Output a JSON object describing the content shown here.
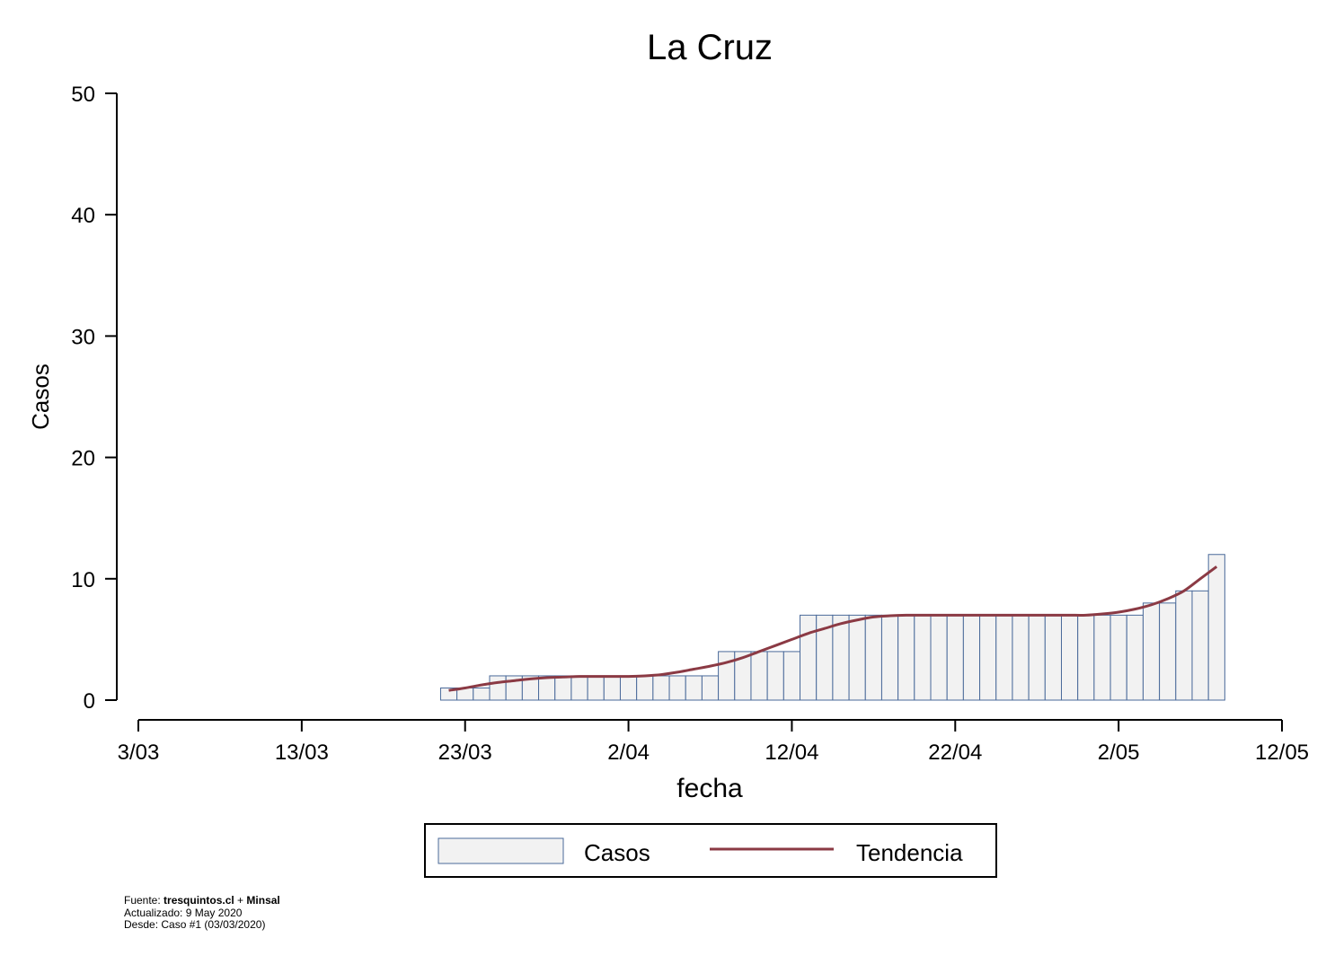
{
  "chart_data": {
    "type": "bar",
    "title": "La Cruz",
    "xlabel": "fecha",
    "ylabel": "Casos",
    "ylim": [
      0,
      50
    ],
    "yticks": [
      0,
      10,
      20,
      30,
      40,
      50
    ],
    "xlim": [
      "2020-03-03",
      "2020-05-12"
    ],
    "xticks": [
      {
        "date": "2020-03-03",
        "label": "3/03"
      },
      {
        "date": "2020-03-13",
        "label": "13/03"
      },
      {
        "date": "2020-03-23",
        "label": "23/03"
      },
      {
        "date": "2020-04-02",
        "label": "2/04"
      },
      {
        "date": "2020-04-12",
        "label": "12/04"
      },
      {
        "date": "2020-04-22",
        "label": "22/04"
      },
      {
        "date": "2020-05-02",
        "label": "2/05"
      },
      {
        "date": "2020-05-12",
        "label": "12/05"
      }
    ],
    "series": [
      {
        "name": "Casos",
        "kind": "bar",
        "color": "#f2f2f2",
        "edge_color": "#4a6a9a",
        "x": [
          "2020-03-22",
          "2020-03-23",
          "2020-03-24",
          "2020-03-25",
          "2020-03-26",
          "2020-03-27",
          "2020-03-28",
          "2020-03-29",
          "2020-03-30",
          "2020-03-31",
          "2020-04-01",
          "2020-04-02",
          "2020-04-03",
          "2020-04-04",
          "2020-04-05",
          "2020-04-06",
          "2020-04-07",
          "2020-04-08",
          "2020-04-09",
          "2020-04-10",
          "2020-04-11",
          "2020-04-12",
          "2020-04-13",
          "2020-04-14",
          "2020-04-15",
          "2020-04-16",
          "2020-04-17",
          "2020-04-18",
          "2020-04-19",
          "2020-04-20",
          "2020-04-21",
          "2020-04-22",
          "2020-04-23",
          "2020-04-24",
          "2020-04-25",
          "2020-04-26",
          "2020-04-27",
          "2020-04-28",
          "2020-04-29",
          "2020-04-30",
          "2020-05-01",
          "2020-05-02",
          "2020-05-03",
          "2020-05-04",
          "2020-05-05",
          "2020-05-06",
          "2020-05-07",
          "2020-05-08"
        ],
        "values": [
          1,
          1,
          1,
          2,
          2,
          2,
          2,
          2,
          2,
          2,
          2,
          2,
          2,
          2,
          2,
          2,
          2,
          4,
          4,
          4,
          4,
          4,
          7,
          7,
          7,
          7,
          7,
          7,
          7,
          7,
          7,
          7,
          7,
          7,
          7,
          7,
          7,
          7,
          7,
          7,
          7,
          7,
          7,
          8,
          8,
          9,
          9,
          12
        ]
      },
      {
        "name": "Tendencia",
        "kind": "line",
        "color": "#8b3a44",
        "x": [
          "2020-03-22",
          "2020-03-23",
          "2020-03-24",
          "2020-03-25",
          "2020-03-26",
          "2020-03-27",
          "2020-03-28",
          "2020-03-29",
          "2020-03-30",
          "2020-03-31",
          "2020-04-01",
          "2020-04-02",
          "2020-04-03",
          "2020-04-04",
          "2020-04-05",
          "2020-04-06",
          "2020-04-07",
          "2020-04-08",
          "2020-04-09",
          "2020-04-10",
          "2020-04-11",
          "2020-04-12",
          "2020-04-13",
          "2020-04-14",
          "2020-04-15",
          "2020-04-16",
          "2020-04-17",
          "2020-04-18",
          "2020-04-19",
          "2020-04-20",
          "2020-04-21",
          "2020-04-22",
          "2020-04-23",
          "2020-04-24",
          "2020-04-25",
          "2020-04-26",
          "2020-04-27",
          "2020-04-28",
          "2020-04-29",
          "2020-04-30",
          "2020-05-01",
          "2020-05-02",
          "2020-05-03",
          "2020-05-04",
          "2020-05-05",
          "2020-05-06",
          "2020-05-07",
          "2020-05-08"
        ],
        "values": [
          0.8,
          1.0,
          1.25,
          1.45,
          1.6,
          1.75,
          1.85,
          1.9,
          1.95,
          1.95,
          1.95,
          1.95,
          2.0,
          2.1,
          2.3,
          2.55,
          2.8,
          3.1,
          3.5,
          4.0,
          4.5,
          5.0,
          5.5,
          5.9,
          6.3,
          6.6,
          6.85,
          6.95,
          7.0,
          7.0,
          7.0,
          7.0,
          7.0,
          7.0,
          7.0,
          7.0,
          7.0,
          7.0,
          7.0,
          7.0,
          7.1,
          7.25,
          7.5,
          7.85,
          8.35,
          9.0,
          10.0,
          11.0
        ]
      }
    ],
    "legend": {
      "position": "bottom",
      "entries": [
        "Casos",
        "Tendencia"
      ]
    }
  },
  "footer": {
    "fuente_label": "Fuente: ",
    "fuente_site": "tresquintos.cl",
    "fuente_plus": " + ",
    "fuente_minsal": "Minsal",
    "actualizado": "Actualizado: 9 May 2020",
    "desde": "Desde: Caso #1  (03/03/2020)"
  }
}
